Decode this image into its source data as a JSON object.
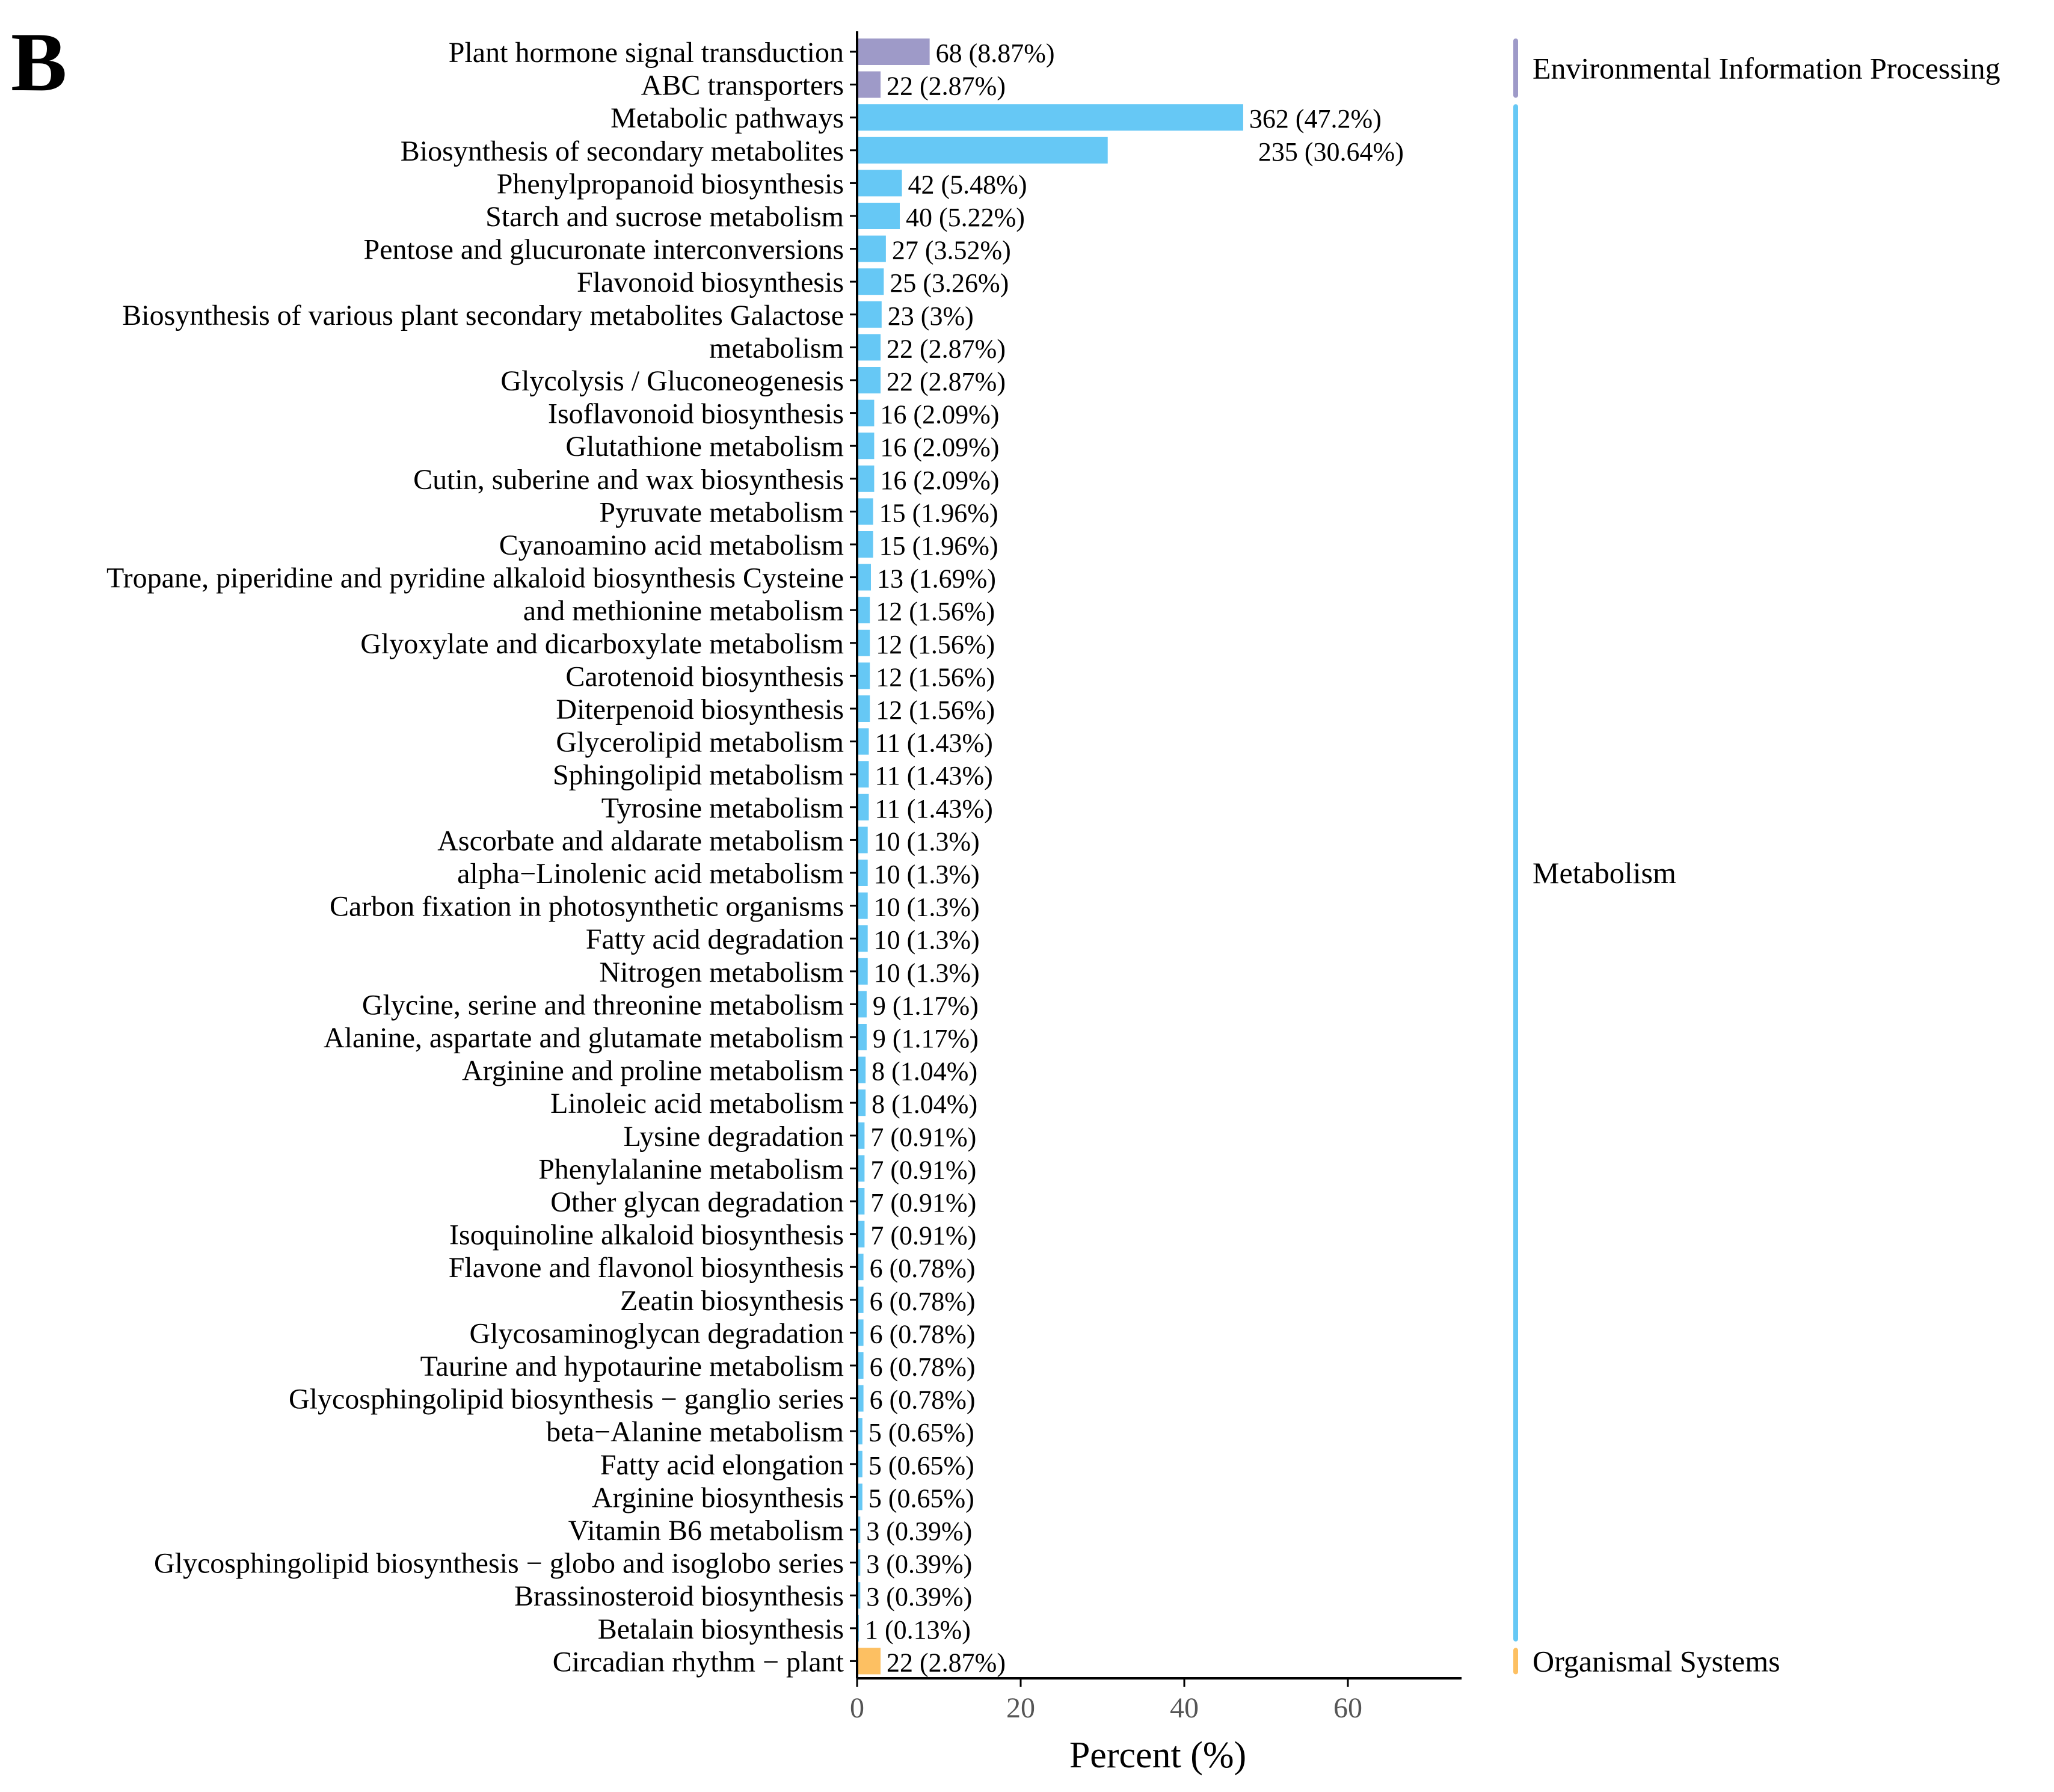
{
  "panel_label": "B",
  "chart_data": {
    "type": "bar",
    "orientation": "horizontal",
    "title": "",
    "xlabel": "Percent (%)",
    "ylabel": "",
    "xlim": [
      0,
      75
    ],
    "xticks": [
      0,
      20,
      40,
      60
    ],
    "grid": false,
    "colors": {
      "Environmental Information Processing": "#9e9ac8",
      "Metabolism": "#66c8f5",
      "Organismal Systems": "#fdc062"
    },
    "groups": [
      {
        "name": "Environmental Information Processing",
        "color": "#9e9ac8",
        "start": 0,
        "end": 1
      },
      {
        "name": "Metabolism",
        "color": "#66c8f5",
        "start": 2,
        "end": 48
      },
      {
        "name": "Organismal Systems",
        "color": "#fdc062",
        "start": 49,
        "end": 49
      }
    ],
    "bars": [
      {
        "label": "Plant hormone signal transduction",
        "count": 68,
        "percent": 8.87,
        "value_label": "68 (8.87%)",
        "group": "Environmental Information Processing"
      },
      {
        "label": "ABC transporters",
        "count": 22,
        "percent": 2.87,
        "value_label": "22 (2.87%)",
        "group": "Environmental Information Processing"
      },
      {
        "label": "Metabolic pathways",
        "count": 362,
        "percent": 47.2,
        "value_label": "362 (47.2%)",
        "group": "Metabolism"
      },
      {
        "label": "Biosynthesis of secondary metabolites",
        "count": 235,
        "percent": 30.64,
        "value_label": "235 (30.64%)",
        "group": "Metabolism",
        "label_below": true
      },
      {
        "label": "Phenylpropanoid biosynthesis",
        "count": 42,
        "percent": 5.48,
        "value_label": "42 (5.48%)",
        "group": "Metabolism"
      },
      {
        "label": "Starch and sucrose metabolism",
        "count": 40,
        "percent": 5.22,
        "value_label": "40 (5.22%)",
        "group": "Metabolism"
      },
      {
        "label": "Pentose and glucuronate interconversions",
        "count": 27,
        "percent": 3.52,
        "value_label": "27 (3.52%)",
        "group": "Metabolism"
      },
      {
        "label": "Flavonoid biosynthesis",
        "count": 25,
        "percent": 3.26,
        "value_label": "25 (3.26%)",
        "group": "Metabolism"
      },
      {
        "label": "Biosynthesis of various plant secondary metabolites Galactose",
        "count": 23,
        "percent": 3.0,
        "value_label": "23 (3%)",
        "group": "Metabolism"
      },
      {
        "label": "metabolism",
        "count": 22,
        "percent": 2.87,
        "value_label": "22 (2.87%)",
        "group": "Metabolism"
      },
      {
        "label": "Glycolysis / Gluconeogenesis",
        "count": 22,
        "percent": 2.87,
        "value_label": "22 (2.87%)",
        "group": "Metabolism"
      },
      {
        "label": "Isoflavonoid biosynthesis",
        "count": 16,
        "percent": 2.09,
        "value_label": "16 (2.09%)",
        "group": "Metabolism"
      },
      {
        "label": "Glutathione metabolism",
        "count": 16,
        "percent": 2.09,
        "value_label": "16 (2.09%)",
        "group": "Metabolism"
      },
      {
        "label": "Cutin, suberine and wax biosynthesis",
        "count": 16,
        "percent": 2.09,
        "value_label": "16 (2.09%)",
        "group": "Metabolism"
      },
      {
        "label": "Pyruvate metabolism",
        "count": 15,
        "percent": 1.96,
        "value_label": "15 (1.96%)",
        "group": "Metabolism"
      },
      {
        "label": "Cyanoamino acid metabolism",
        "count": 15,
        "percent": 1.96,
        "value_label": "15 (1.96%)",
        "group": "Metabolism"
      },
      {
        "label": "Tropane, piperidine and pyridine alkaloid biosynthesis Cysteine",
        "count": 13,
        "percent": 1.69,
        "value_label": "13 (1.69%)",
        "group": "Metabolism"
      },
      {
        "label": "and methionine metabolism",
        "count": 12,
        "percent": 1.56,
        "value_label": "12 (1.56%)",
        "group": "Metabolism"
      },
      {
        "label": "Glyoxylate and dicarboxylate metabolism",
        "count": 12,
        "percent": 1.56,
        "value_label": "12 (1.56%)",
        "group": "Metabolism"
      },
      {
        "label": "Carotenoid biosynthesis",
        "count": 12,
        "percent": 1.56,
        "value_label": "12 (1.56%)",
        "group": "Metabolism"
      },
      {
        "label": "Diterpenoid biosynthesis",
        "count": 12,
        "percent": 1.56,
        "value_label": "12 (1.56%)",
        "group": "Metabolism"
      },
      {
        "label": "Glycerolipid metabolism",
        "count": 11,
        "percent": 1.43,
        "value_label": "11 (1.43%)",
        "group": "Metabolism"
      },
      {
        "label": "Sphingolipid metabolism",
        "count": 11,
        "percent": 1.43,
        "value_label": "11 (1.43%)",
        "group": "Metabolism"
      },
      {
        "label": "Tyrosine metabolism",
        "count": 11,
        "percent": 1.43,
        "value_label": "11 (1.43%)",
        "group": "Metabolism"
      },
      {
        "label": "Ascorbate and aldarate metabolism",
        "count": 10,
        "percent": 1.3,
        "value_label": "10 (1.3%)",
        "group": "Metabolism"
      },
      {
        "label": "alpha−Linolenic acid metabolism",
        "count": 10,
        "percent": 1.3,
        "value_label": "10 (1.3%)",
        "group": "Metabolism"
      },
      {
        "label": "Carbon fixation in photosynthetic organisms",
        "count": 10,
        "percent": 1.3,
        "value_label": "10 (1.3%)",
        "group": "Metabolism"
      },
      {
        "label": "Fatty acid degradation",
        "count": 10,
        "percent": 1.3,
        "value_label": "10 (1.3%)",
        "group": "Metabolism"
      },
      {
        "label": "Nitrogen metabolism",
        "count": 10,
        "percent": 1.3,
        "value_label": "10 (1.3%)",
        "group": "Metabolism"
      },
      {
        "label": "Glycine, serine and threonine metabolism",
        "count": 9,
        "percent": 1.17,
        "value_label": "9 (1.17%)",
        "group": "Metabolism"
      },
      {
        "label": "Alanine, aspartate and glutamate metabolism",
        "count": 9,
        "percent": 1.17,
        "value_label": "9 (1.17%)",
        "group": "Metabolism"
      },
      {
        "label": "Arginine and proline metabolism",
        "count": 8,
        "percent": 1.04,
        "value_label": "8 (1.04%)",
        "group": "Metabolism"
      },
      {
        "label": "Linoleic acid metabolism",
        "count": 8,
        "percent": 1.04,
        "value_label": "8 (1.04%)",
        "group": "Metabolism"
      },
      {
        "label": "Lysine degradation",
        "count": 7,
        "percent": 0.91,
        "value_label": "7 (0.91%)",
        "group": "Metabolism"
      },
      {
        "label": "Phenylalanine metabolism",
        "count": 7,
        "percent": 0.91,
        "value_label": "7 (0.91%)",
        "group": "Metabolism"
      },
      {
        "label": "Other glycan degradation",
        "count": 7,
        "percent": 0.91,
        "value_label": "7 (0.91%)",
        "group": "Metabolism"
      },
      {
        "label": "Isoquinoline alkaloid biosynthesis",
        "count": 7,
        "percent": 0.91,
        "value_label": "7 (0.91%)",
        "group": "Metabolism"
      },
      {
        "label": "Flavone and flavonol biosynthesis",
        "count": 6,
        "percent": 0.78,
        "value_label": "6 (0.78%)",
        "group": "Metabolism"
      },
      {
        "label": "Zeatin biosynthesis",
        "count": 6,
        "percent": 0.78,
        "value_label": "6 (0.78%)",
        "group": "Metabolism"
      },
      {
        "label": "Glycosaminoglycan degradation",
        "count": 6,
        "percent": 0.78,
        "value_label": "6 (0.78%)",
        "group": "Metabolism"
      },
      {
        "label": "Taurine and hypotaurine metabolism",
        "count": 6,
        "percent": 0.78,
        "value_label": "6 (0.78%)",
        "group": "Metabolism"
      },
      {
        "label": "Glycosphingolipid biosynthesis − ganglio series",
        "count": 6,
        "percent": 0.78,
        "value_label": "6 (0.78%)",
        "group": "Metabolism"
      },
      {
        "label": "beta−Alanine metabolism",
        "count": 5,
        "percent": 0.65,
        "value_label": "5 (0.65%)",
        "group": "Metabolism"
      },
      {
        "label": "Fatty acid elongation",
        "count": 5,
        "percent": 0.65,
        "value_label": "5 (0.65%)",
        "group": "Metabolism"
      },
      {
        "label": "Arginine biosynthesis",
        "count": 5,
        "percent": 0.65,
        "value_label": "5 (0.65%)",
        "group": "Metabolism"
      },
      {
        "label": "Vitamin B6 metabolism",
        "count": 3,
        "percent": 0.39,
        "value_label": "3 (0.39%)",
        "group": "Metabolism"
      },
      {
        "label": "Glycosphingolipid biosynthesis − globo and isoglobo series",
        "count": 3,
        "percent": 0.39,
        "value_label": "3 (0.39%)",
        "group": "Metabolism"
      },
      {
        "label": "Brassinosteroid biosynthesis",
        "count": 3,
        "percent": 0.39,
        "value_label": "3 (0.39%)",
        "group": "Metabolism"
      },
      {
        "label": "Betalain biosynthesis",
        "count": 1,
        "percent": 0.13,
        "value_label": "1 (0.13%)",
        "group": "Metabolism"
      },
      {
        "label": "Circadian rhythm − plant",
        "count": 22,
        "percent": 2.87,
        "value_label": "22 (2.87%)",
        "group": "Organismal Systems"
      }
    ]
  }
}
